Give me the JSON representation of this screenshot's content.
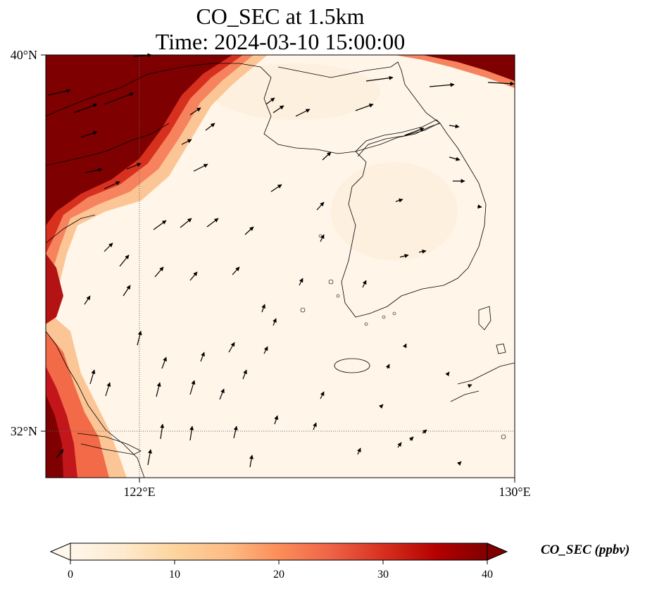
{
  "title": {
    "line1": "CO_SEC at 1.5km",
    "line2": "Time: 2024-03-10 15:00:00"
  },
  "map": {
    "lon_range": [
      118,
      130
    ],
    "lat_range": [
      30.8,
      40
    ],
    "lon_ticks": [
      {
        "value": 122,
        "label": "122°E"
      },
      {
        "value": 130,
        "label": "130°E"
      }
    ],
    "lat_ticks": [
      {
        "value": 40,
        "label": "40°N"
      },
      {
        "value": 32,
        "label": "32°N"
      }
    ],
    "gridlines": "dotted",
    "field_colors": {
      "low": "#fff5e9",
      "mid": "#f2644b",
      "high": "#7f0000"
    }
  },
  "colorbar": {
    "label": "CO_SEC (ppbv)",
    "ticks": [
      "0",
      "10",
      "20",
      "30",
      "40"
    ],
    "min": 0,
    "max": 40,
    "extend": "both",
    "colormap": "OrRd"
  }
}
